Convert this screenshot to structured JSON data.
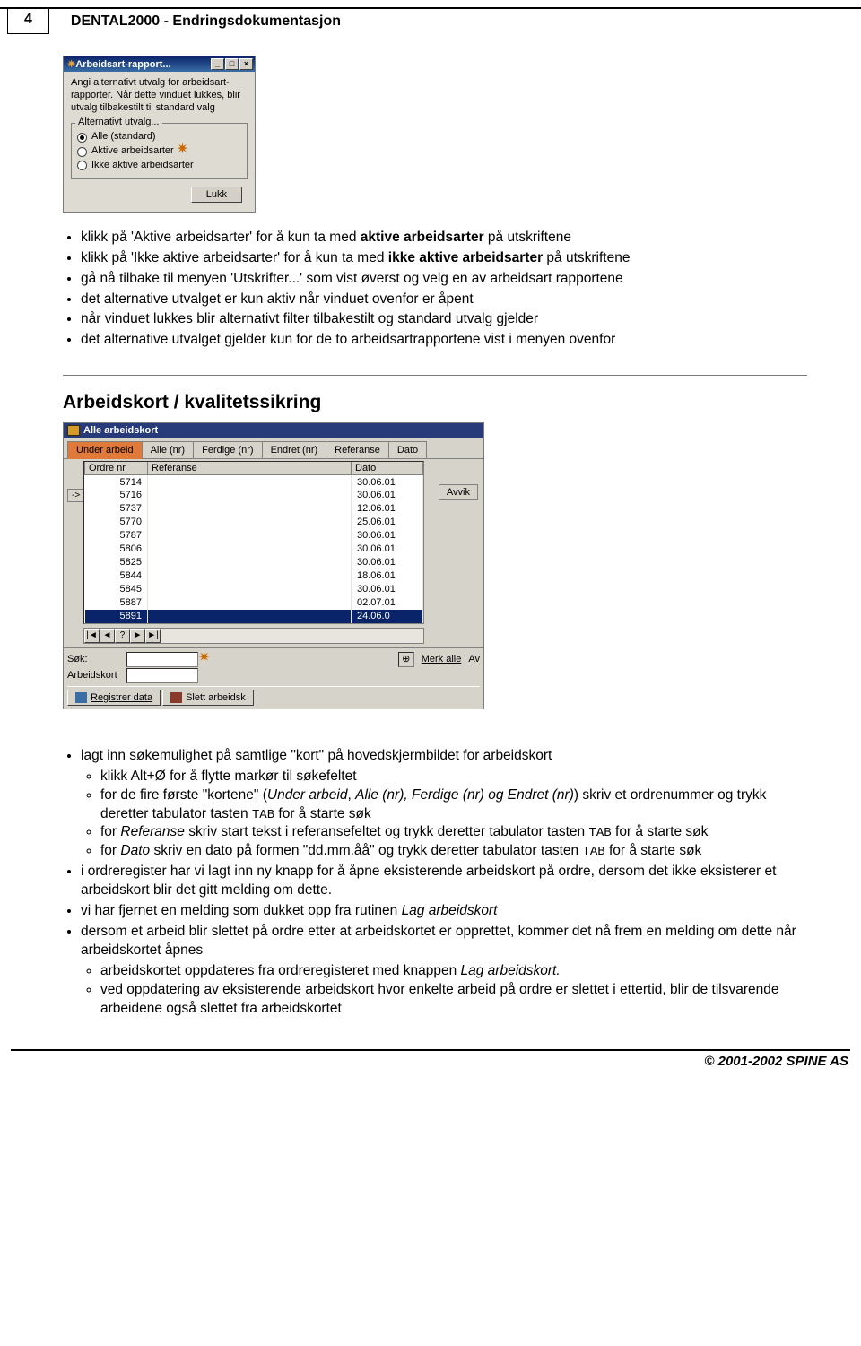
{
  "header": {
    "page_number": "4",
    "title": "DENTAL2000 - Endringsdokumentasjon"
  },
  "dialog1": {
    "title": "Arbeidsart-rapport...",
    "body_text": "Angi alternativt utvalg for arbeidsart-rapporter. Når dette vinduet lukkes, blir utvalg tilbakestilt til standard valg",
    "group_legend": "Alternativt utvalg...",
    "opt1": "Alle (standard)",
    "opt2": "Aktive arbeidsarter",
    "opt3": "Ikke aktive arbeidsarter",
    "ok": "Lukk"
  },
  "list1": {
    "i1_a": "klikk på 'Aktive arbeidsarter' for å kun ta med ",
    "i1_b": "aktive arbeidsarter",
    "i1_c": " på utskriftene",
    "i2_a": "klikk på 'Ikke aktive arbeidsarter' for å kun ta med ",
    "i2_b": "ikke aktive arbeidsarter",
    "i2_c": " på utskriftene",
    "i3": "gå nå tilbake til menyen 'Utskrifter...' som vist øverst og velg en av arbeidsart rapportene",
    "i4": "det alternative utvalget er kun aktiv når vinduet ovenfor er åpent",
    "i5": "når vinduet lukkes blir alternativt filter tilbakestilt og standard utvalg gjelder",
    "i6": "det alternative utvalget gjelder kun for de to arbeidsartrapportene vist i menyen ovenfor"
  },
  "section2_title": "Arbeidskort / kvalitetssikring",
  "akwin": {
    "title": "Alle arbeidskort",
    "tabs": [
      "Under arbeid",
      "Alle (nr)",
      "Ferdige (nr)",
      "Endret (nr)",
      "Referanse",
      "Dato"
    ],
    "arrow": "->",
    "col_ordre": "Ordre nr",
    "col_ref": "Referanse",
    "col_dato": "Dato",
    "avvik": "Avvik",
    "rows": [
      {
        "nr": "5714",
        "dato": "30.06.01"
      },
      {
        "nr": "5716",
        "dato": "30.06.01"
      },
      {
        "nr": "5737",
        "dato": "12.06.01"
      },
      {
        "nr": "5770",
        "dato": "25.06.01"
      },
      {
        "nr": "5787",
        "dato": "30.06.01"
      },
      {
        "nr": "5806",
        "dato": "30.06.01"
      },
      {
        "nr": "5825",
        "dato": "30.06.01"
      },
      {
        "nr": "5844",
        "dato": "18.06.01"
      },
      {
        "nr": "5845",
        "dato": "30.06.01"
      },
      {
        "nr": "5887",
        "dato": "02.07.01"
      },
      {
        "nr": "5891",
        "dato": "24.06.0"
      }
    ],
    "sok_label": "Søk:",
    "sok_field": "Arbeidskort",
    "merk": "Merk alle",
    "btn_reg": "Registrer data",
    "btn_del": "Slett arbeidsk"
  },
  "list2": {
    "a": "lagt inn søkemulighet på samtlige \"kort\" på hovedskjermbildet for arbeidskort",
    "a1": "klikk Alt+Ø for å flytte markør til søkefeltet",
    "a2_a": "for de fire første \"kortene\" (",
    "a2_b": "Under arbeid",
    "a2_c": ", ",
    "a2_d": "Alle (nr), Ferdige (nr) og Endret (nr)",
    "a2_e": ") skriv et ordrenummer og trykk deretter tabulator tasten ",
    "a2_f": "TAB",
    "a2_g": " for å starte søk",
    "a3_a": "for ",
    "a3_b": "Referanse",
    "a3_c": " skriv start tekst i referansefeltet og trykk deretter tabulator tasten ",
    "a3_d": "TAB",
    "a3_e": " for å starte søk",
    "a4_a": "for ",
    "a4_b": "Dato",
    "a4_c": " skriv en dato på formen \"dd.mm.åå\" og trykk deretter tabulator tasten ",
    "a4_d": "TAB",
    "a4_e": " for å starte søk",
    "b": "i ordreregister har vi lagt inn ny knapp for å åpne eksisterende arbeidskort på ordre, dersom det ikke eksisterer et arbeidskort blir det gitt melding om dette.",
    "c_a": "vi har fjernet en melding som dukket opp fra rutinen ",
    "c_b": "Lag arbeidskort",
    "d": "dersom et arbeid blir slettet på ordre etter at arbeidskortet er opprettet, kommer det nå frem en melding om dette når arbeidskortet åpnes",
    "d1_a": "arbeidskortet oppdateres fra ordreregisteret med knappen ",
    "d1_b": "Lag arbeidskort.",
    "d2": "ved oppdatering av eksisterende arbeidskort hvor enkelte arbeid på ordre er slettet i ettertid, blir de tilsvarende arbeidene også slettet fra arbeidskortet"
  },
  "footer": "© 2001-2002  SPINE AS"
}
